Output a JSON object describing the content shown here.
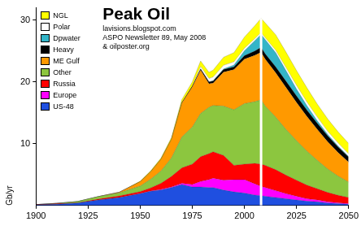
{
  "chart_data": {
    "type": "area",
    "title": "Peak Oil",
    "subtitle": [
      "lavisions.blogspot.com",
      "ASPO Newsletter 89, May 2008",
      "& oilposter.org"
    ],
    "y_label": "Gb/yr",
    "x": [
      1900,
      1910,
      1920,
      1930,
      1940,
      1950,
      1955,
      1960,
      1965,
      1970,
      1975,
      1979,
      1983,
      1985,
      1990,
      1995,
      2000,
      2005,
      2008,
      2010,
      2015,
      2020,
      2025,
      2030,
      2035,
      2040,
      2045,
      2050
    ],
    "series": [
      {
        "name": "NGL",
        "color": "#ffff00",
        "values": [
          0,
          0,
          0,
          0,
          0,
          0.1,
          0.15,
          0.2,
          0.3,
          0.5,
          0.7,
          0.9,
          1.0,
          1.1,
          1.3,
          1.5,
          1.8,
          2.1,
          2.3,
          2.4,
          2.5,
          2.5,
          2.4,
          2.3,
          2.1,
          2.0,
          1.8,
          1.7
        ]
      },
      {
        "name": "Polar",
        "color": "#ffffff",
        "values": [
          0,
          0,
          0,
          0,
          0,
          0,
          0,
          0,
          0,
          0,
          0,
          0.4,
          0.5,
          0.6,
          0.6,
          0.5,
          0.4,
          0.3,
          0.3,
          0.3,
          0.4,
          0.5,
          0.6,
          0.6,
          0.6,
          0.5,
          0.5,
          0.4
        ]
      },
      {
        "name": "Dpwater",
        "color": "#33b5c8",
        "values": [
          0,
          0,
          0,
          0,
          0,
          0,
          0,
          0,
          0,
          0,
          0,
          0,
          0.05,
          0.05,
          0.1,
          0.3,
          0.8,
          1.7,
          2.1,
          2.3,
          2.3,
          1.7,
          1.1,
          0.7,
          0.4,
          0.25,
          0.15,
          0.1
        ]
      },
      {
        "name": "Heavy",
        "color": "#000000",
        "values": [
          0,
          0,
          0,
          0,
          0,
          0,
          0,
          0,
          0,
          0.05,
          0.1,
          0.2,
          0.3,
          0.35,
          0.4,
          0.45,
          0.55,
          0.7,
          0.8,
          0.85,
          0.95,
          1.0,
          1.05,
          1.05,
          1.0,
          0.95,
          0.9,
          0.85
        ]
      },
      {
        "name": "ME Gulf",
        "color": "#ff9900",
        "values": [
          0,
          0,
          0,
          0,
          0.1,
          0.7,
          1.2,
          1.9,
          3.0,
          5.5,
          6.5,
          7.0,
          3.8,
          3.6,
          5.5,
          6.5,
          7.2,
          7.5,
          7.7,
          7.6,
          7.2,
          6.8,
          6.2,
          5.6,
          5.0,
          4.4,
          3.8,
          3.2
        ]
      },
      {
        "name": "Other",
        "color": "#8cc63f",
        "values": [
          0,
          0.05,
          0.2,
          0.4,
          0.5,
          0.9,
          1.4,
          2.0,
          3.0,
          5.0,
          6.0,
          7.0,
          7.5,
          7.5,
          8.0,
          9.0,
          9.8,
          10.0,
          10.4,
          9.6,
          8.5,
          7.4,
          6.4,
          5.5,
          4.6,
          3.8,
          3.1,
          2.5
        ]
      },
      {
        "name": "Russia",
        "color": "#ff0000",
        "values": [
          0.05,
          0.1,
          0.05,
          0.15,
          0.25,
          0.3,
          0.5,
          1.0,
          1.7,
          2.5,
          3.3,
          4.0,
          4.2,
          4.3,
          4.0,
          2.3,
          2.5,
          3.3,
          3.6,
          3.6,
          3.4,
          3.0,
          2.6,
          2.2,
          1.8,
          1.5,
          1.2,
          1.0
        ]
      },
      {
        "name": "Europe",
        "color": "#ff00ff",
        "values": [
          0,
          0,
          0,
          0,
          0,
          0.05,
          0.05,
          0.1,
          0.1,
          0.2,
          0.4,
          0.9,
          1.3,
          1.5,
          1.6,
          2.0,
          2.2,
          1.8,
          1.5,
          1.4,
          1.1,
          0.8,
          0.6,
          0.4,
          0.3,
          0.2,
          0.15,
          0.1
        ]
      },
      {
        "name": "US-48",
        "color": "#1f4fe0",
        "values": [
          0.1,
          0.2,
          0.4,
          0.9,
          1.3,
          1.9,
          2.3,
          2.5,
          2.9,
          3.4,
          3.0,
          3.0,
          2.9,
          2.9,
          2.5,
          2.2,
          2.0,
          1.7,
          1.6,
          1.5,
          1.3,
          1.1,
          0.9,
          0.7,
          0.6,
          0.4,
          0.3,
          0.2
        ]
      }
    ],
    "xlim": [
      1900,
      2050
    ],
    "xticks": [
      1900,
      1925,
      1950,
      1975,
      2000,
      2025,
      2050
    ],
    "ylim": [
      0,
      32
    ],
    "yticks": [
      10,
      20,
      30
    ],
    "stacked": true,
    "grid": false,
    "legend": "top-left",
    "vline": 2008
  }
}
